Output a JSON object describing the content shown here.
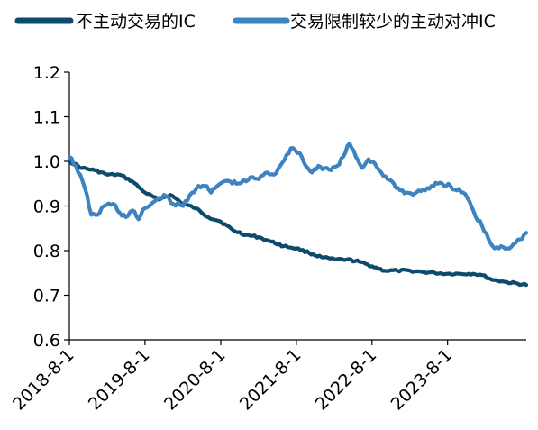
{
  "chart_data": {
    "type": "line",
    "title": "",
    "xlabel": "",
    "ylabel": "",
    "ylim": [
      0.6,
      1.2
    ],
    "y_ticks": [
      0.6,
      0.7,
      0.8,
      0.9,
      1.0,
      1.1,
      1.2
    ],
    "y_tick_labels": [
      "0.6",
      "0.7",
      "0.8",
      "0.9",
      "1.0",
      "1.1",
      "1.2"
    ],
    "x_range": [
      "2018-08-01",
      "2024-08-15"
    ],
    "x_ticks": [
      "2018-08-01",
      "2019-08-01",
      "2020-08-01",
      "2021-08-01",
      "2022-08-01",
      "2023-08-01"
    ],
    "x_tick_labels": [
      "2018-8-1",
      "2019-8-1",
      "2020-8-1",
      "2021-8-1",
      "2022-8-1",
      "2023-8-1"
    ],
    "legend_position": "top",
    "grid": false,
    "series": [
      {
        "name": "不主动交易的IC",
        "color": "#0d4a6b",
        "points": [
          [
            "2018-08-01",
            1.0
          ],
          [
            "2018-10-01",
            0.985
          ],
          [
            "2018-12-01",
            0.98
          ],
          [
            "2019-02-01",
            0.97
          ],
          [
            "2019-04-01",
            0.97
          ],
          [
            "2019-06-01",
            0.955
          ],
          [
            "2019-08-01",
            0.93
          ],
          [
            "2019-10-01",
            0.915
          ],
          [
            "2019-12-01",
            0.925
          ],
          [
            "2020-02-01",
            0.905
          ],
          [
            "2020-04-01",
            0.895
          ],
          [
            "2020-06-01",
            0.875
          ],
          [
            "2020-08-01",
            0.865
          ],
          [
            "2020-10-01",
            0.845
          ],
          [
            "2020-12-01",
            0.835
          ],
          [
            "2021-02-01",
            0.83
          ],
          [
            "2021-04-01",
            0.82
          ],
          [
            "2021-06-01",
            0.81
          ],
          [
            "2021-08-01",
            0.805
          ],
          [
            "2021-10-01",
            0.795
          ],
          [
            "2021-12-01",
            0.785
          ],
          [
            "2022-02-01",
            0.78
          ],
          [
            "2022-04-01",
            0.78
          ],
          [
            "2022-06-01",
            0.775
          ],
          [
            "2022-08-01",
            0.765
          ],
          [
            "2022-10-01",
            0.755
          ],
          [
            "2022-12-01",
            0.755
          ],
          [
            "2023-02-01",
            0.755
          ],
          [
            "2023-04-01",
            0.752
          ],
          [
            "2023-06-01",
            0.75
          ],
          [
            "2023-08-01",
            0.748
          ],
          [
            "2023-10-01",
            0.748
          ],
          [
            "2023-12-01",
            0.748
          ],
          [
            "2024-01-15",
            0.745
          ],
          [
            "2024-03-01",
            0.735
          ],
          [
            "2024-05-01",
            0.73
          ],
          [
            "2024-08-15",
            0.723
          ]
        ]
      },
      {
        "name": "交易限制较少的主动对冲IC",
        "color": "#3e82c0",
        "points": [
          [
            "2018-08-01",
            1.01
          ],
          [
            "2018-09-01",
            0.99
          ],
          [
            "2018-10-15",
            0.94
          ],
          [
            "2018-11-15",
            0.88
          ],
          [
            "2018-12-15",
            0.88
          ],
          [
            "2019-01-15",
            0.9
          ],
          [
            "2019-03-01",
            0.905
          ],
          [
            "2019-04-01",
            0.885
          ],
          [
            "2019-05-01",
            0.875
          ],
          [
            "2019-06-01",
            0.89
          ],
          [
            "2019-07-01",
            0.87
          ],
          [
            "2019-08-01",
            0.895
          ],
          [
            "2019-09-15",
            0.91
          ],
          [
            "2019-11-01",
            0.925
          ],
          [
            "2019-12-15",
            0.905
          ],
          [
            "2020-02-01",
            0.9
          ],
          [
            "2020-03-15",
            0.93
          ],
          [
            "2020-04-15",
            0.945
          ],
          [
            "2020-05-15",
            0.945
          ],
          [
            "2020-06-15",
            0.93
          ],
          [
            "2020-07-15",
            0.945
          ],
          [
            "2020-08-15",
            0.955
          ],
          [
            "2020-09-15",
            0.955
          ],
          [
            "2020-10-15",
            0.95
          ],
          [
            "2020-12-01",
            0.955
          ],
          [
            "2021-01-01",
            0.965
          ],
          [
            "2021-02-01",
            0.96
          ],
          [
            "2021-03-15",
            0.975
          ],
          [
            "2021-04-15",
            0.97
          ],
          [
            "2021-05-15",
            0.99
          ],
          [
            "2021-06-15",
            1.015
          ],
          [
            "2021-07-15",
            1.03
          ],
          [
            "2021-08-15",
            1.02
          ],
          [
            "2021-09-15",
            0.99
          ],
          [
            "2021-10-15",
            0.975
          ],
          [
            "2021-11-15",
            0.99
          ],
          [
            "2021-12-15",
            0.985
          ],
          [
            "2022-01-15",
            0.98
          ],
          [
            "2022-02-15",
            0.99
          ],
          [
            "2022-03-15",
            1.01
          ],
          [
            "2022-04-15",
            1.04
          ],
          [
            "2022-05-15",
            1.01
          ],
          [
            "2022-06-15",
            0.985
          ],
          [
            "2022-07-15",
            1.005
          ],
          [
            "2022-08-15",
            0.995
          ],
          [
            "2022-09-15",
            0.975
          ],
          [
            "2022-10-15",
            0.96
          ],
          [
            "2022-11-15",
            0.95
          ],
          [
            "2022-12-15",
            0.935
          ],
          [
            "2023-01-15",
            0.93
          ],
          [
            "2023-02-15",
            0.925
          ],
          [
            "2023-03-15",
            0.935
          ],
          [
            "2023-04-15",
            0.935
          ],
          [
            "2023-05-15",
            0.945
          ],
          [
            "2023-06-15",
            0.95
          ],
          [
            "2023-07-15",
            0.945
          ],
          [
            "2023-08-15",
            0.945
          ],
          [
            "2023-09-15",
            0.935
          ],
          [
            "2023-10-15",
            0.93
          ],
          [
            "2023-11-15",
            0.91
          ],
          [
            "2023-12-15",
            0.875
          ],
          [
            "2024-01-15",
            0.855
          ],
          [
            "2024-02-15",
            0.825
          ],
          [
            "2024-03-15",
            0.805
          ],
          [
            "2024-04-15",
            0.81
          ],
          [
            "2024-05-15",
            0.805
          ],
          [
            "2024-06-15",
            0.815
          ],
          [
            "2024-07-15",
            0.825
          ],
          [
            "2024-08-15",
            0.84
          ]
        ]
      }
    ]
  }
}
